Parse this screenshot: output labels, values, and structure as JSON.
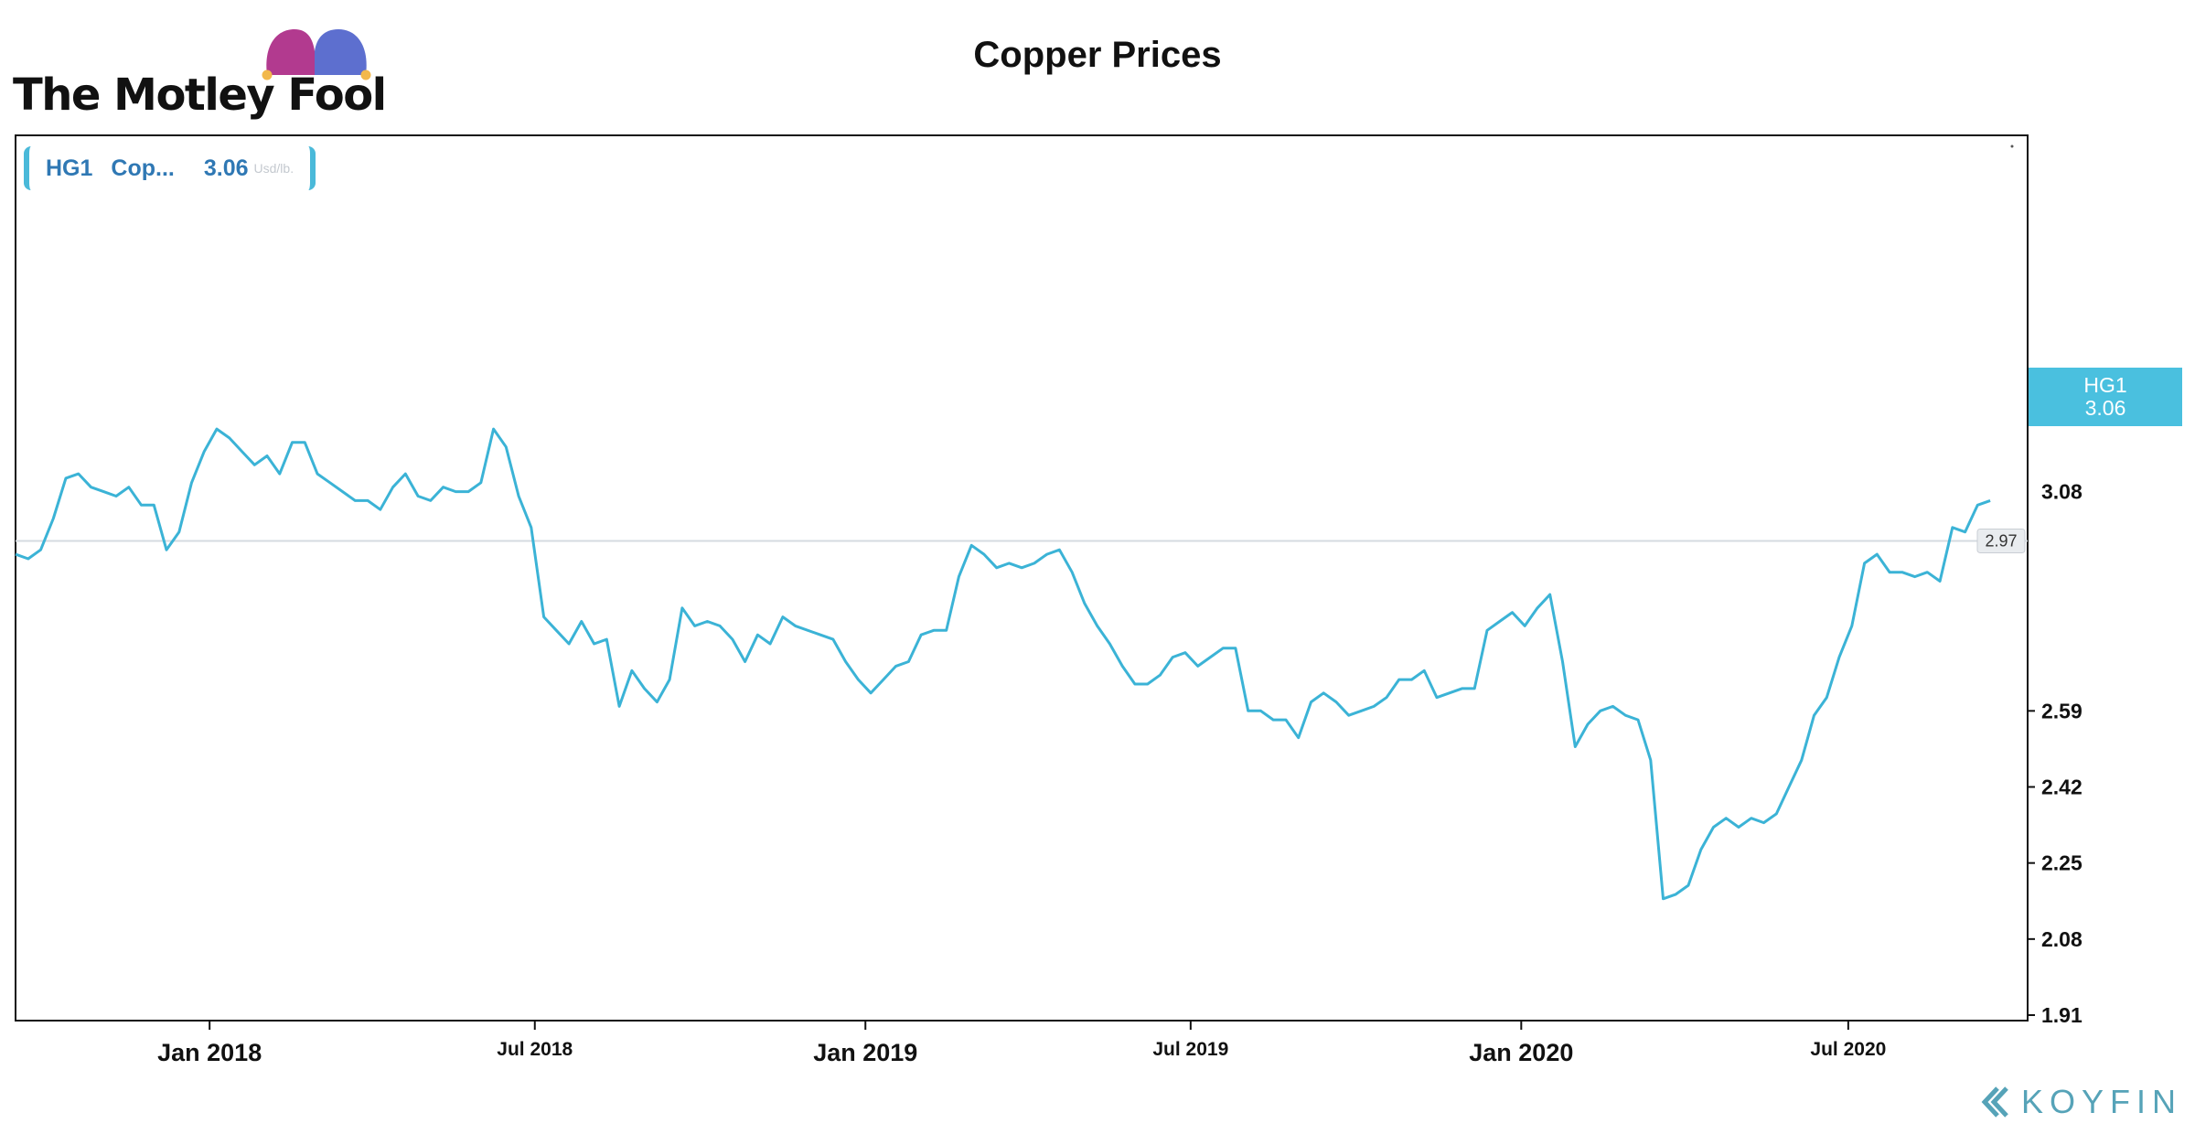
{
  "brand": {
    "logo_text": "The Motley Fool",
    "logo_icon": "jester-hat-icon",
    "watermark": "KOYFIN",
    "watermark_icon": "koyfin-chevron-icon"
  },
  "legend": {
    "ticker": "HG1",
    "name": "Cop...",
    "value": "3.06",
    "unit": "Usd/lb."
  },
  "colors": {
    "line": "#3bb3d6",
    "accent": "#4ac0df",
    "ref_line": "#d5dbe0",
    "frame": "#111111"
  },
  "price_badge": {
    "ticker": "HG1",
    "value": "3.06"
  },
  "ref_label": "2.97",
  "partial_tick": "3.08",
  "chart_data": {
    "type": "line",
    "title": "Copper Prices",
    "xlabel": "",
    "ylabel": "",
    "x_range": [
      "2017-09-15",
      "2020-09-20"
    ],
    "ylim": [
      1.91,
      3.3
    ],
    "y_ticks": [
      "1.91",
      "2.08",
      "2.25",
      "2.42",
      "2.59"
    ],
    "x_ticks": [
      {
        "date": "2018-01-01",
        "label": "Jan 2018",
        "major": true
      },
      {
        "date": "2018-07-01",
        "label": "Jul 2018",
        "major": false
      },
      {
        "date": "2019-01-01",
        "label": "Jan 2019",
        "major": true
      },
      {
        "date": "2019-07-01",
        "label": "Jul 2019",
        "major": false
      },
      {
        "date": "2020-01-01",
        "label": "Jan 2020",
        "major": true
      },
      {
        "date": "2020-07-01",
        "label": "Jul 2020",
        "major": false
      }
    ],
    "reference_line": 2.97,
    "grid": false,
    "series": [
      {
        "name": "HG1",
        "points": [
          [
            "2017-09-15",
            2.94
          ],
          [
            "2017-09-22",
            2.93
          ],
          [
            "2017-09-29",
            2.95
          ],
          [
            "2017-10-06",
            3.02
          ],
          [
            "2017-10-13",
            3.11
          ],
          [
            "2017-10-20",
            3.12
          ],
          [
            "2017-10-27",
            3.09
          ],
          [
            "2017-11-03",
            3.08
          ],
          [
            "2017-11-10",
            3.07
          ],
          [
            "2017-11-17",
            3.09
          ],
          [
            "2017-11-24",
            3.05
          ],
          [
            "2017-12-01",
            3.05
          ],
          [
            "2017-12-08",
            2.95
          ],
          [
            "2017-12-15",
            2.99
          ],
          [
            "2017-12-22",
            3.1
          ],
          [
            "2017-12-29",
            3.17
          ],
          [
            "2018-01-05",
            3.22
          ],
          [
            "2018-01-12",
            3.2
          ],
          [
            "2018-01-19",
            3.17
          ],
          [
            "2018-01-26",
            3.14
          ],
          [
            "2018-02-02",
            3.16
          ],
          [
            "2018-02-09",
            3.12
          ],
          [
            "2018-02-16",
            3.19
          ],
          [
            "2018-02-23",
            3.19
          ],
          [
            "2018-03-02",
            3.12
          ],
          [
            "2018-03-09",
            3.1
          ],
          [
            "2018-03-16",
            3.08
          ],
          [
            "2018-03-23",
            3.06
          ],
          [
            "2018-03-30",
            3.06
          ],
          [
            "2018-04-06",
            3.04
          ],
          [
            "2018-04-13",
            3.09
          ],
          [
            "2018-04-20",
            3.12
          ],
          [
            "2018-04-27",
            3.07
          ],
          [
            "2018-05-04",
            3.06
          ],
          [
            "2018-05-11",
            3.09
          ],
          [
            "2018-05-18",
            3.08
          ],
          [
            "2018-05-25",
            3.08
          ],
          [
            "2018-06-01",
            3.1
          ],
          [
            "2018-06-08",
            3.22
          ],
          [
            "2018-06-15",
            3.18
          ],
          [
            "2018-06-22",
            3.07
          ],
          [
            "2018-06-29",
            3.0
          ],
          [
            "2018-07-06",
            2.8
          ],
          [
            "2018-07-13",
            2.77
          ],
          [
            "2018-07-20",
            2.74
          ],
          [
            "2018-07-27",
            2.79
          ],
          [
            "2018-08-03",
            2.74
          ],
          [
            "2018-08-10",
            2.75
          ],
          [
            "2018-08-17",
            2.6
          ],
          [
            "2018-08-24",
            2.68
          ],
          [
            "2018-08-31",
            2.64
          ],
          [
            "2018-09-07",
            2.61
          ],
          [
            "2018-09-14",
            2.66
          ],
          [
            "2018-09-21",
            2.82
          ],
          [
            "2018-09-28",
            2.78
          ],
          [
            "2018-10-05",
            2.79
          ],
          [
            "2018-10-12",
            2.78
          ],
          [
            "2018-10-19",
            2.75
          ],
          [
            "2018-10-26",
            2.7
          ],
          [
            "2018-11-02",
            2.76
          ],
          [
            "2018-11-09",
            2.74
          ],
          [
            "2018-11-16",
            2.8
          ],
          [
            "2018-11-23",
            2.78
          ],
          [
            "2018-12-07",
            2.76
          ],
          [
            "2018-12-14",
            2.75
          ],
          [
            "2018-12-21",
            2.7
          ],
          [
            "2018-12-28",
            2.66
          ],
          [
            "2019-01-04",
            2.63
          ],
          [
            "2019-01-11",
            2.66
          ],
          [
            "2019-01-18",
            2.69
          ],
          [
            "2019-01-25",
            2.7
          ],
          [
            "2019-02-01",
            2.76
          ],
          [
            "2019-02-08",
            2.77
          ],
          [
            "2019-02-15",
            2.77
          ],
          [
            "2019-02-22",
            2.89
          ],
          [
            "2019-03-01",
            2.96
          ],
          [
            "2019-03-08",
            2.94
          ],
          [
            "2019-03-15",
            2.91
          ],
          [
            "2019-03-22",
            2.92
          ],
          [
            "2019-03-29",
            2.91
          ],
          [
            "2019-04-05",
            2.92
          ],
          [
            "2019-04-12",
            2.94
          ],
          [
            "2019-04-19",
            2.95
          ],
          [
            "2019-04-26",
            2.9
          ],
          [
            "2019-05-03",
            2.83
          ],
          [
            "2019-05-10",
            2.78
          ],
          [
            "2019-05-17",
            2.74
          ],
          [
            "2019-05-24",
            2.69
          ],
          [
            "2019-05-31",
            2.65
          ],
          [
            "2019-06-07",
            2.65
          ],
          [
            "2019-06-14",
            2.67
          ],
          [
            "2019-06-21",
            2.71
          ],
          [
            "2019-06-28",
            2.72
          ],
          [
            "2019-07-05",
            2.69
          ],
          [
            "2019-07-12",
            2.71
          ],
          [
            "2019-07-19",
            2.73
          ],
          [
            "2019-07-26",
            2.73
          ],
          [
            "2019-08-02",
            2.59
          ],
          [
            "2019-08-09",
            2.59
          ],
          [
            "2019-08-16",
            2.57
          ],
          [
            "2019-08-23",
            2.57
          ],
          [
            "2019-08-30",
            2.53
          ],
          [
            "2019-09-06",
            2.61
          ],
          [
            "2019-09-13",
            2.63
          ],
          [
            "2019-09-20",
            2.61
          ],
          [
            "2019-09-27",
            2.58
          ],
          [
            "2019-10-04",
            2.59
          ],
          [
            "2019-10-11",
            2.6
          ],
          [
            "2019-10-18",
            2.62
          ],
          [
            "2019-10-25",
            2.66
          ],
          [
            "2019-11-01",
            2.66
          ],
          [
            "2019-11-08",
            2.68
          ],
          [
            "2019-11-15",
            2.62
          ],
          [
            "2019-11-22",
            2.63
          ],
          [
            "2019-11-29",
            2.64
          ],
          [
            "2019-12-06",
            2.64
          ],
          [
            "2019-12-13",
            2.77
          ],
          [
            "2019-12-20",
            2.79
          ],
          [
            "2019-12-27",
            2.81
          ],
          [
            "2020-01-03",
            2.78
          ],
          [
            "2020-01-10",
            2.82
          ],
          [
            "2020-01-17",
            2.85
          ],
          [
            "2020-01-24",
            2.7
          ],
          [
            "2020-01-31",
            2.51
          ],
          [
            "2020-02-07",
            2.56
          ],
          [
            "2020-02-14",
            2.59
          ],
          [
            "2020-02-21",
            2.6
          ],
          [
            "2020-02-28",
            2.58
          ],
          [
            "2020-03-06",
            2.57
          ],
          [
            "2020-03-13",
            2.48
          ],
          [
            "2020-03-20",
            2.17
          ],
          [
            "2020-03-27",
            2.18
          ],
          [
            "2020-04-03",
            2.2
          ],
          [
            "2020-04-10",
            2.28
          ],
          [
            "2020-04-17",
            2.33
          ],
          [
            "2020-04-24",
            2.35
          ],
          [
            "2020-05-01",
            2.33
          ],
          [
            "2020-05-08",
            2.35
          ],
          [
            "2020-05-15",
            2.34
          ],
          [
            "2020-05-22",
            2.36
          ],
          [
            "2020-05-29",
            2.42
          ],
          [
            "2020-06-05",
            2.48
          ],
          [
            "2020-06-12",
            2.58
          ],
          [
            "2020-06-19",
            2.62
          ],
          [
            "2020-06-26",
            2.71
          ],
          [
            "2020-07-03",
            2.78
          ],
          [
            "2020-07-10",
            2.92
          ],
          [
            "2020-07-17",
            2.94
          ],
          [
            "2020-07-24",
            2.9
          ],
          [
            "2020-07-31",
            2.9
          ],
          [
            "2020-08-07",
            2.89
          ],
          [
            "2020-08-14",
            2.9
          ],
          [
            "2020-08-21",
            2.88
          ],
          [
            "2020-08-28",
            3.0
          ],
          [
            "2020-09-04",
            2.99
          ],
          [
            "2020-09-11",
            3.05
          ],
          [
            "2020-09-18",
            3.06
          ]
        ]
      }
    ]
  }
}
